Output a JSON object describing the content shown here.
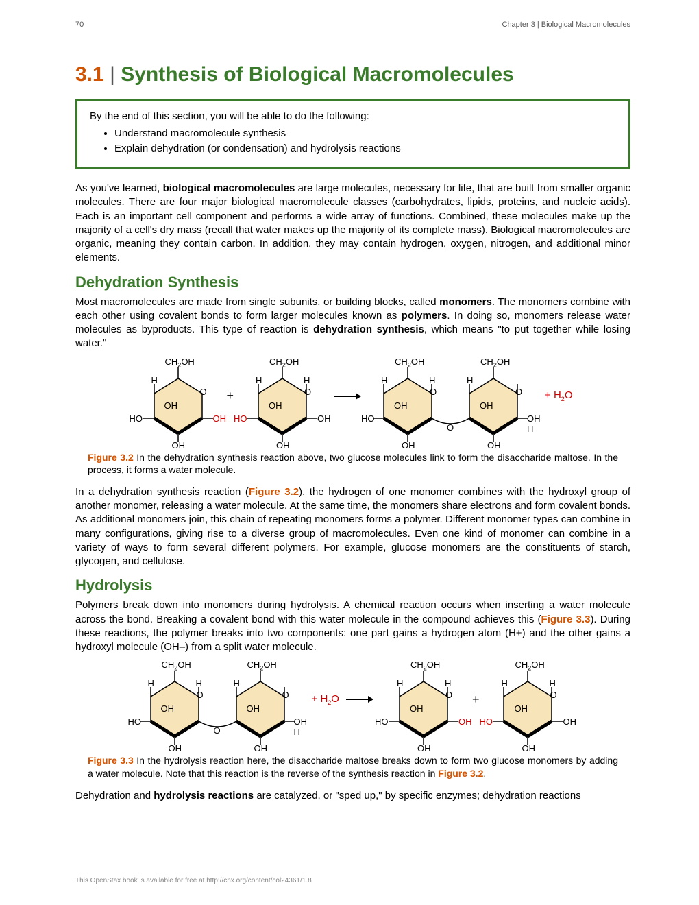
{
  "header": {
    "page_number": "70",
    "chapter": "Chapter 3 | Biological Macromolecules"
  },
  "title": {
    "number": "3.1",
    "pipe": "|",
    "name": "Synthesis of Biological Macromolecules"
  },
  "objectives": {
    "intro": "By the end of this section, you will be able to do the following:",
    "items": [
      "Understand macromolecule synthesis",
      "Explain dehydration (or condensation) and hydrolysis reactions"
    ]
  },
  "para_intro_a": "As you've learned, ",
  "para_intro_bold": "biological macromolecules",
  "para_intro_b": " are large molecules, necessary for life, that are built from smaller organic molecules. There are four major biological macromolecule classes (carbohydrates, lipids, proteins, and nucleic acids). Each is an important cell component and performs a wide array of functions. Combined, these molecules make up the majority of a cell's dry mass (recall that water makes up the majority of its complete mass). Biological macromolecules are organic, meaning they contain carbon. In addition, they may contain hydrogen, oxygen, nitrogen, and additional minor elements.",
  "h2_dehydration": "Dehydration Synthesis",
  "para_dehy_a": "Most macromolecules are made from single subunits, or building blocks, called ",
  "para_dehy_mono": "monomers",
  "para_dehy_b": ". The monomers combine with each other using covalent bonds to form larger molecules known as ",
  "para_dehy_poly": "polymers",
  "para_dehy_c": ". In doing so, monomers release water molecules as byproducts. This type of reaction is ",
  "para_dehy_ds": "dehydration synthesis",
  "para_dehy_d": ", which means \"to put together while losing water.\"",
  "fig32": {
    "label": "Figure 3.2",
    "caption": " In the dehydration synthesis reaction above, two glucose molecules link to form the disaccharide maltose. In the process, it forms a water molecule."
  },
  "para_dehy2_a": "In a dehydration synthesis reaction (",
  "para_dehy2_ref": "Figure 3.2",
  "para_dehy2_b": "), the hydrogen of one monomer combines with the hydroxyl group of another monomer, releasing a water molecule. At the same time, the monomers share electrons and form covalent bonds. As additional monomers join, this chain of repeating monomers forms a polymer. Different monomer types can combine in many configurations, giving rise to a diverse group of macromolecules. Even one kind of monomer can combine in a variety of ways to form several different polymers. For example, glucose monomers are the constituents of starch, glycogen, and cellulose.",
  "h2_hydrolysis": "Hydrolysis",
  "para_hydro_a": "Polymers break down into monomers during hydrolysis. A chemical reaction occurs when inserting a water molecule across the bond. Breaking a covalent bond with this water molecule in the compound achieves this (",
  "para_hydro_ref": "Figure 3.3",
  "para_hydro_b": "). During these reactions, the polymer breaks into two components: one part gains a hydrogen atom (H+) and the other gains a hydroxyl molecule (OH–) from a split water molecule.",
  "fig33": {
    "label": "Figure 3.3",
    "caption_a": " In the hydrolysis reaction here, the disaccharide maltose breaks down to form two glucose monomers by adding a water molecule. Note that this reaction is the reverse of the synthesis reaction in ",
    "ref": "Figure 3.2",
    "caption_b": "."
  },
  "para_last_a": "Dehydration and ",
  "para_last_bold": "hydrolysis reactions",
  "para_last_b": " are catalyzed, or \"sped up,\" by specific enzymes; dehydration reactions",
  "footer": "This OpenStax book is available for free at http://cnx.org/content/col24361/1.8",
  "chem": {
    "hex_fill": "#f8e4b9",
    "hex_stroke": "#000000",
    "red": "#cc0000",
    "labels": {
      "ch2oh": "CH",
      "ch2oh_sub": "2",
      "ch2oh_tail": "OH",
      "o": "O",
      "h": "H",
      "oh": "OH",
      "ho": "HO",
      "h2o_plus": "+ H",
      "h2o_sub": "2",
      "h2o_tail": "O"
    }
  }
}
